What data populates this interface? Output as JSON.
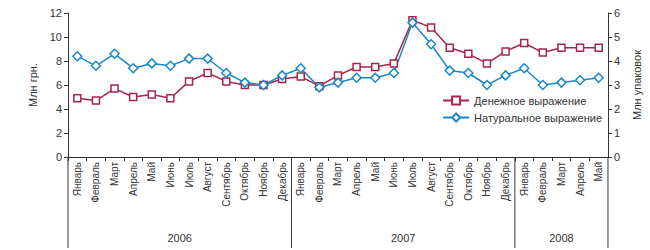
{
  "chart_data": {
    "type": "line",
    "categories": [
      "Январь",
      "Февраль",
      "Март",
      "Апрель",
      "Май",
      "Июнь",
      "Июль",
      "Август",
      "Сентябрь",
      "Октябрь",
      "Ноябрь",
      "Декабрь",
      "Январь",
      "Февраль",
      "Март",
      "Апрель",
      "Май",
      "Июнь",
      "Июль",
      "Август",
      "Сентябрь",
      "Октябрь",
      "Ноябрь",
      "Декабрь",
      "Январь",
      "Февраль",
      "Март",
      "Апрель",
      "Май"
    ],
    "category_groups": [
      {
        "label": "2006",
        "span": 12
      },
      {
        "label": "2007",
        "span": 12
      },
      {
        "label": "2008",
        "span": 5
      }
    ],
    "series": [
      {
        "name": "Денежное выражение",
        "color": "#a6254a",
        "marker": "square",
        "axis": "y",
        "values": [
          4.9,
          4.7,
          5.7,
          5.0,
          5.2,
          4.9,
          6.3,
          7.0,
          6.3,
          6.0,
          6.0,
          6.5,
          6.7,
          5.9,
          6.8,
          7.5,
          7.5,
          7.8,
          11.4,
          10.8,
          9.1,
          8.6,
          7.8,
          8.8,
          9.5,
          8.7,
          9.1,
          9.1,
          9.1
        ]
      },
      {
        "name": "Натуральное выражение",
        "color": "#1b87c9",
        "marker": "diamond",
        "axis": "y2",
        "values": [
          4.2,
          3.8,
          4.3,
          3.7,
          3.9,
          3.8,
          4.1,
          4.1,
          3.5,
          3.1,
          3.0,
          3.4,
          3.7,
          2.9,
          3.1,
          3.3,
          3.3,
          3.5,
          5.6,
          4.7,
          3.6,
          3.5,
          3.0,
          3.4,
          3.7,
          3.0,
          3.1,
          3.2,
          3.3
        ]
      }
    ],
    "ylabel": "Млн грн.",
    "y2label": "Млн упаковок",
    "ylim": [
      0,
      12
    ],
    "yticks": [
      0,
      2,
      4,
      6,
      8,
      10,
      12
    ],
    "y2lim": [
      0,
      6
    ],
    "y2ticks": [
      0,
      1,
      2,
      3,
      4,
      5,
      6
    ],
    "grid": false,
    "legend": "right"
  }
}
